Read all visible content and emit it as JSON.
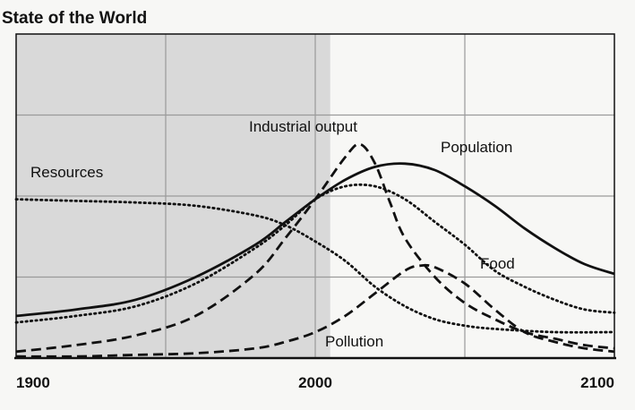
{
  "chart_data": {
    "type": "line",
    "title": "State of the World",
    "xlabel": "",
    "ylabel": "",
    "xlim": [
      1900,
      2100
    ],
    "x_ticks": [
      1900,
      2000,
      2100
    ],
    "x_tick_labels": [
      "1900",
      "2000",
      "2100"
    ],
    "ylim": [
      0,
      1
    ],
    "y_ticks_shown": false,
    "grid": true,
    "legend": "none (series labelled directly on the plot)",
    "shaded_region": {
      "from": 1900,
      "to": 2005
    },
    "colors": {
      "background": "#f7f7f5",
      "shaded": "#d9d9d9",
      "grid": "#9a9a9a",
      "lines": "#111111"
    },
    "series": [
      {
        "name": "Resources",
        "style": "dotted",
        "x": [
          1900,
          1920,
          1940,
          1960,
          1980,
          1990,
          2000,
          2010,
          2020,
          2030,
          2040,
          2050,
          2060,
          2080,
          2100
        ],
        "y": [
          0.49,
          0.485,
          0.48,
          0.47,
          0.44,
          0.41,
          0.36,
          0.3,
          0.22,
          0.16,
          0.12,
          0.1,
          0.09,
          0.08,
          0.08
        ]
      },
      {
        "name": "Population",
        "style": "solid",
        "x": [
          1900,
          1920,
          1940,
          1960,
          1980,
          1990,
          2000,
          2010,
          2020,
          2030,
          2040,
          2050,
          2060,
          2070,
          2080,
          2090,
          2100
        ],
        "y": [
          0.13,
          0.15,
          0.18,
          0.25,
          0.35,
          0.42,
          0.49,
          0.55,
          0.59,
          0.6,
          0.58,
          0.53,
          0.47,
          0.4,
          0.34,
          0.29,
          0.26
        ]
      },
      {
        "name": "Industrial output",
        "style": "dashed",
        "x": [
          1900,
          1920,
          1940,
          1960,
          1980,
          1990,
          2000,
          2010,
          2015,
          2020,
          2025,
          2030,
          2040,
          2050,
          2060,
          2070,
          2080,
          2090,
          2100
        ],
        "y": [
          0.02,
          0.04,
          0.07,
          0.13,
          0.26,
          0.37,
          0.49,
          0.62,
          0.66,
          0.6,
          0.48,
          0.37,
          0.25,
          0.17,
          0.12,
          0.08,
          0.06,
          0.04,
          0.03
        ]
      },
      {
        "name": "Food",
        "style": "dotted",
        "x": [
          1900,
          1920,
          1940,
          1960,
          1980,
          1990,
          2000,
          2010,
          2020,
          2030,
          2040,
          2050,
          2060,
          2070,
          2080,
          2090,
          2100
        ],
        "y": [
          0.11,
          0.13,
          0.16,
          0.23,
          0.34,
          0.41,
          0.49,
          0.53,
          0.53,
          0.49,
          0.42,
          0.35,
          0.27,
          0.22,
          0.18,
          0.15,
          0.14
        ]
      },
      {
        "name": "Pollution",
        "style": "dashed",
        "x": [
          1900,
          1920,
          1940,
          1960,
          1980,
          1990,
          2000,
          2010,
          2020,
          2030,
          2035,
          2040,
          2050,
          2060,
          2070,
          2080,
          2090,
          2100
        ],
        "y": [
          0.005,
          0.005,
          0.01,
          0.015,
          0.03,
          0.05,
          0.08,
          0.13,
          0.2,
          0.27,
          0.285,
          0.28,
          0.23,
          0.15,
          0.08,
          0.05,
          0.03,
          0.02
        ]
      }
    ]
  }
}
